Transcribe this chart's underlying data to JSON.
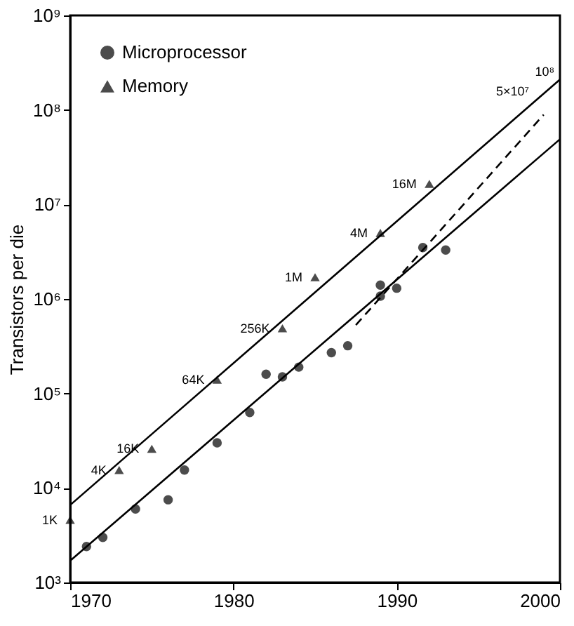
{
  "chart_data": {
    "type": "scatter",
    "ylabel": "Transistors per die",
    "log": "y",
    "grid": false,
    "legend": "top left",
    "xlim": [
      1970,
      2000
    ],
    "xticks": [
      1970,
      1980,
      1990,
      2000
    ],
    "ylim": [
      1000,
      1000000000
    ],
    "yticks": [
      {
        "value": 1000,
        "label": "10³"
      },
      {
        "value": 10000,
        "label": "10⁴"
      },
      {
        "value": 100000,
        "label": "10⁵"
      },
      {
        "value": 1000000,
        "label": "10⁶"
      },
      {
        "value": 10000000,
        "label": "10⁷"
      },
      {
        "value": 100000000,
        "label": "10⁸"
      },
      {
        "value": 1000000000,
        "label": "10⁹"
      }
    ],
    "series": [
      {
        "name": "Microprocessor",
        "type": "scatter",
        "marker": "circle",
        "color": "#000000",
        "x": [
          1971,
          1972,
          1974,
          1976,
          1977,
          1979,
          1981,
          1982,
          1983,
          1984,
          1986,
          1987,
          1989,
          1989,
          1990,
          1991.6,
          1993
        ],
        "values": [
          2400,
          3000,
          6000,
          7500,
          15500,
          30000,
          63000,
          160000,
          150000,
          190000,
          270000,
          320000,
          1400000,
          1070000,
          1300000,
          3500000,
          3300000
        ]
      },
      {
        "name": "Memory",
        "type": "scatter",
        "marker": "triangle",
        "color": "#000000",
        "x": [
          1970,
          1973,
          1975,
          1979,
          1983,
          1985,
          1989,
          1992
        ],
        "values": [
          4600,
          15500,
          26000,
          140000,
          490000,
          1700000,
          5000000,
          16500000
        ]
      },
      {
        "type": "line",
        "line_style": "solid",
        "color": "#000000",
        "x": [
          1970,
          2000
        ],
        "values": [
          6600,
          210000000
        ]
      },
      {
        "type": "line",
        "line_style": "solid",
        "color": "#000000",
        "x": [
          1970,
          2000
        ],
        "values": [
          1700,
          49000000
        ]
      },
      {
        "type": "line",
        "line_style": "dashed",
        "color": "#000000",
        "x": [
          1987.5,
          1999
        ],
        "values": [
          530000,
          89000000
        ]
      }
    ],
    "annotations": [
      {
        "text": "1K",
        "x": 1970,
        "y": 4600
      },
      {
        "text": "4K",
        "x": 1973,
        "y": 15500
      },
      {
        "text": "16K",
        "x": 1975,
        "y": 26000
      },
      {
        "text": "64K",
        "x": 1979,
        "y": 140000
      },
      {
        "text": "256K",
        "x": 1983,
        "y": 490000
      },
      {
        "text": "1M",
        "x": 1985,
        "y": 1700000
      },
      {
        "text": "4M",
        "x": 1989,
        "y": 5000000
      },
      {
        "text": "16M",
        "x": 1992,
        "y": 16500000
      },
      "10⁸",
      "5×10⁷"
    ]
  }
}
